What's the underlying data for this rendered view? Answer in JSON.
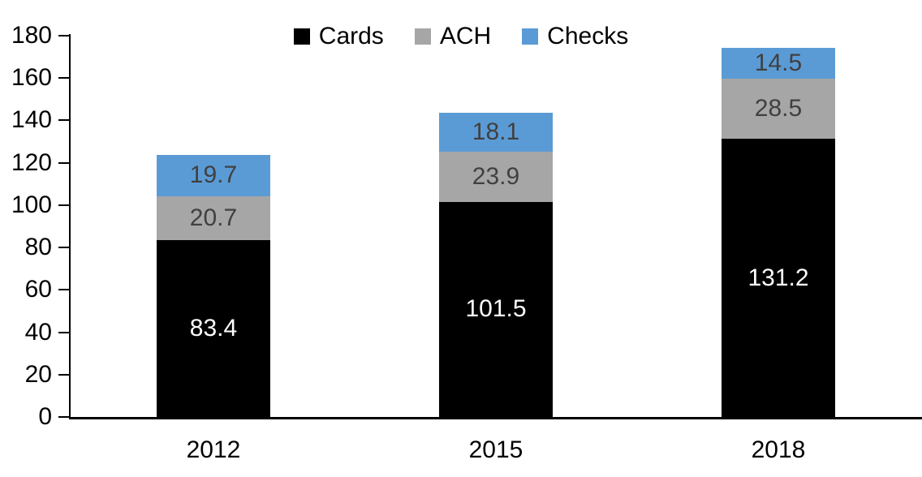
{
  "chart_data": {
    "type": "bar",
    "stacked": true,
    "title": "",
    "xlabel": "",
    "ylabel": "",
    "categories": [
      "2012",
      "2015",
      "2018"
    ],
    "series": [
      {
        "name": "Cards",
        "color": "#000000",
        "label_color": "#ffffff",
        "values": [
          83.4,
          101.5,
          131.2
        ]
      },
      {
        "name": "ACH",
        "color": "#A6A6A6",
        "label_color": "#404040",
        "values": [
          20.7,
          23.9,
          28.5
        ]
      },
      {
        "name": "Checks",
        "color": "#5B9BD5",
        "label_color": "#404040",
        "values": [
          19.7,
          18.1,
          14.5
        ]
      }
    ],
    "totals": [
      123.8,
      143.5,
      174.2
    ],
    "ylim": [
      0,
      180
    ],
    "ytick_step": 20,
    "yticks": [
      0,
      20,
      40,
      60,
      80,
      100,
      120,
      140,
      160,
      180
    ],
    "grid": false,
    "legend_position": "top-center",
    "value_label_decimals": 1
  }
}
